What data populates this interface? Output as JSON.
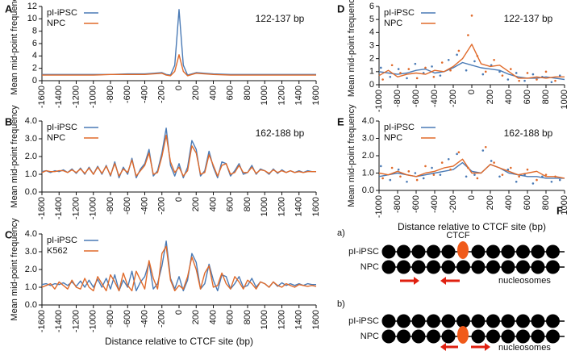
{
  "chart_data": [
    {
      "type": "line",
      "panel": "A",
      "annotation": "122-137 bp",
      "ylabel": "Mean mid-point frequency",
      "x": [
        -1600,
        -1400,
        -1200,
        -1000,
        -800,
        -600,
        -400,
        -300,
        -200,
        -150,
        -100,
        -50,
        0,
        50,
        100,
        150,
        200,
        300,
        400,
        600,
        800,
        1000,
        1200,
        1400,
        1600
      ],
      "series": [
        {
          "name": "pI-iPSC",
          "color": "#4a7ab5",
          "values": [
            1.0,
            1.0,
            1.0,
            1.0,
            1.0,
            1.1,
            1.1,
            1.2,
            1.3,
            1.0,
            0.9,
            2.5,
            11.5,
            2.5,
            0.9,
            1.1,
            1.3,
            1.2,
            1.1,
            1.0,
            1.0,
            1.0,
            1.0,
            1.0,
            1.0
          ]
        },
        {
          "name": "NPC",
          "color": "#e06a2a",
          "values": [
            0.9,
            0.9,
            0.9,
            0.9,
            1.0,
            1.0,
            1.0,
            1.1,
            1.2,
            0.9,
            0.8,
            1.5,
            4.2,
            1.5,
            0.8,
            1.0,
            1.2,
            1.1,
            1.0,
            0.9,
            0.9,
            0.9,
            0.9,
            0.9,
            0.9
          ]
        }
      ],
      "xlim": [
        -1600,
        1600
      ],
      "xticks": [
        -1600,
        -1400,
        -1200,
        -1000,
        -800,
        -600,
        -400,
        -200,
        0,
        200,
        400,
        600,
        800,
        1000,
        1200,
        1400,
        1600
      ],
      "ylim": [
        0,
        12
      ],
      "yticks": [
        0,
        2,
        4,
        6,
        8,
        10,
        12
      ]
    },
    {
      "type": "line",
      "panel": "B",
      "annotation": "162-188 bp",
      "ylabel": "Mean mid-point frequency",
      "x": [
        -1600,
        -1550,
        -1500,
        -1450,
        -1400,
        -1350,
        -1300,
        -1250,
        -1200,
        -1150,
        -1100,
        -1050,
        -1000,
        -950,
        -900,
        -850,
        -800,
        -750,
        -700,
        -650,
        -600,
        -550,
        -500,
        -450,
        -400,
        -350,
        -300,
        -250,
        -200,
        -150,
        -100,
        -50,
        0,
        50,
        100,
        150,
        200,
        250,
        300,
        350,
        400,
        450,
        500,
        550,
        600,
        650,
        700,
        750,
        800,
        850,
        900,
        950,
        1000,
        1050,
        1100,
        1150,
        1200,
        1250,
        1300,
        1350,
        1400,
        1450,
        1500,
        1550,
        1600
      ],
      "series": [
        {
          "name": "pI-iPSC",
          "color": "#4a7ab5",
          "values": [
            1.15,
            1.2,
            1.1,
            1.2,
            1.15,
            1.25,
            1.1,
            1.3,
            1.05,
            1.35,
            1.0,
            1.4,
            1.0,
            1.45,
            1.0,
            1.5,
            0.9,
            1.7,
            0.8,
            1.4,
            1.0,
            1.9,
            0.8,
            1.3,
            1.6,
            2.4,
            0.9,
            1.2,
            2.2,
            3.6,
            1.5,
            0.9,
            1.6,
            0.8,
            1.4,
            2.9,
            2.4,
            0.9,
            1.2,
            2.3,
            1.4,
            0.8,
            1.7,
            1.6,
            0.9,
            1.2,
            1.6,
            1.0,
            1.1,
            1.5,
            1.0,
            1.3,
            1.2,
            1.0,
            1.3,
            1.05,
            1.25,
            1.1,
            1.2,
            1.1,
            1.2,
            1.1,
            1.2,
            1.15,
            1.15
          ]
        },
        {
          "name": "NPC",
          "color": "#e06a2a",
          "values": [
            1.1,
            1.2,
            1.15,
            1.15,
            1.2,
            1.2,
            1.1,
            1.25,
            1.1,
            1.3,
            1.05,
            1.35,
            1.0,
            1.4,
            1.05,
            1.45,
            0.95,
            1.6,
            0.9,
            1.3,
            1.1,
            1.8,
            0.9,
            1.2,
            1.5,
            2.2,
            1.0,
            1.1,
            2.0,
            3.2,
            1.7,
            1.1,
            1.4,
            0.9,
            1.2,
            2.6,
            2.2,
            1.0,
            1.1,
            2.1,
            1.5,
            0.9,
            1.5,
            1.6,
            1.0,
            1.1,
            1.5,
            1.1,
            1.1,
            1.4,
            1.05,
            1.25,
            1.2,
            1.05,
            1.25,
            1.1,
            1.2,
            1.1,
            1.2,
            1.1,
            1.15,
            1.1,
            1.15,
            1.15,
            1.15
          ]
        }
      ],
      "xlim": [
        -1600,
        1600
      ],
      "xticks": [
        -1600,
        -1400,
        -1200,
        -1000,
        -800,
        -600,
        -400,
        -200,
        0,
        200,
        400,
        600,
        800,
        1000,
        1200,
        1400,
        1600
      ],
      "ylim": [
        0,
        4
      ],
      "yticks": [
        {
          "value": 0,
          "label": "0.0"
        },
        {
          "value": 1,
          "label": "1.0"
        },
        {
          "value": 2,
          "label": "2.0"
        },
        {
          "value": 3,
          "label": "3.0"
        },
        {
          "value": 4,
          "label": "4.0"
        }
      ]
    },
    {
      "type": "line",
      "panel": "C",
      "ylabel": "Mean mid-point frequency",
      "xlabel": "Distance relative to CTCF site (bp)",
      "x": [
        -1600,
        -1550,
        -1500,
        -1450,
        -1400,
        -1350,
        -1300,
        -1250,
        -1200,
        -1150,
        -1100,
        -1050,
        -1000,
        -950,
        -900,
        -850,
        -800,
        -750,
        -700,
        -650,
        -600,
        -550,
        -500,
        -450,
        -400,
        -350,
        -300,
        -250,
        -200,
        -150,
        -100,
        -50,
        0,
        50,
        100,
        150,
        200,
        250,
        300,
        350,
        400,
        450,
        500,
        550,
        600,
        650,
        700,
        750,
        800,
        850,
        900,
        950,
        1000,
        1050,
        1100,
        1150,
        1200,
        1250,
        1300,
        1350,
        1400,
        1450,
        1500,
        1550,
        1600
      ],
      "series": [
        {
          "name": "pI-iPSC",
          "color": "#4a7ab5",
          "values": [
            1.15,
            1.2,
            1.1,
            1.2,
            1.15,
            1.25,
            1.1,
            1.3,
            1.05,
            1.35,
            1.0,
            1.4,
            1.0,
            1.45,
            1.0,
            1.5,
            0.9,
            1.7,
            0.8,
            1.4,
            1.0,
            1.9,
            0.8,
            1.3,
            1.6,
            2.4,
            0.9,
            1.2,
            2.2,
            3.6,
            1.5,
            0.9,
            1.6,
            0.8,
            1.4,
            2.9,
            2.4,
            0.9,
            1.2,
            2.3,
            1.4,
            0.8,
            1.7,
            1.6,
            0.9,
            1.2,
            1.6,
            1.0,
            1.1,
            1.5,
            1.0,
            1.3,
            1.2,
            1.0,
            1.3,
            1.05,
            1.25,
            1.1,
            1.2,
            1.1,
            1.2,
            1.1,
            1.2,
            1.15,
            1.15
          ]
        },
        {
          "name": "K562",
          "color": "#e06a2a",
          "values": [
            1.0,
            1.1,
            1.2,
            0.9,
            1.3,
            1.1,
            0.9,
            1.4,
            1.0,
            0.9,
            1.5,
            1.0,
            0.8,
            1.6,
            1.2,
            0.8,
            1.7,
            1.3,
            0.8,
            1.8,
            1.1,
            0.8,
            1.9,
            1.4,
            0.9,
            2.5,
            1.5,
            0.9,
            2.9,
            3.3,
            1.4,
            0.8,
            1.1,
            0.9,
            1.6,
            2.7,
            2.0,
            0.9,
            1.8,
            2.2,
            1.0,
            1.1,
            1.8,
            1.2,
            0.9,
            1.6,
            1.3,
            0.9,
            1.4,
            1.2,
            0.9,
            1.3,
            1.2,
            1.0,
            1.3,
            1.1,
            1.0,
            1.2,
            1.1,
            1.0,
            1.15,
            1.1,
            1.05,
            1.1,
            1.05
          ]
        }
      ],
      "xlim": [
        -1600,
        1600
      ],
      "xticks": [
        -1600,
        -1400,
        -1200,
        -1000,
        -800,
        -600,
        -400,
        -200,
        0,
        200,
        400,
        600,
        800,
        1000,
        1200,
        1400,
        1600
      ],
      "ylim": [
        0,
        4
      ],
      "yticks": [
        {
          "value": 0,
          "label": "0.0"
        },
        {
          "value": 1,
          "label": "1.0"
        },
        {
          "value": 2,
          "label": "2.0"
        },
        {
          "value": 3,
          "label": "3.0"
        },
        {
          "value": 4,
          "label": "4.0"
        }
      ]
    },
    {
      "type": "line",
      "panel": "D",
      "annotation": "122-137 bp",
      "ylabel": "Mean mid-point frequency",
      "x": [
        -1000,
        -900,
        -800,
        -700,
        -600,
        -500,
        -400,
        -300,
        -200,
        -100,
        0,
        100,
        200,
        300,
        400,
        500,
        600,
        700,
        800,
        900,
        1000
      ],
      "series": [
        {
          "name": "pI-iPSC",
          "color": "#4a7ab5",
          "values": [
            1.0,
            0.9,
            0.8,
            0.9,
            1.1,
            1.2,
            0.9,
            1.0,
            1.3,
            1.7,
            1.5,
            1.3,
            1.2,
            1.1,
            0.8,
            0.6,
            0.5,
            0.5,
            0.6,
            0.5,
            0.4
          ],
          "points": {
            "x": [
              -980,
              -880,
              -790,
              -700,
              -610,
              -520,
              -430,
              -340,
              -250,
              -160,
              -60,
              30,
              120,
              210,
              300,
              390,
              480,
              570,
              660,
              760,
              860,
              950
            ],
            "y": [
              1.3,
              0.6,
              1.2,
              0.5,
              1.6,
              0.9,
              1.4,
              0.7,
              1.9,
              2.3,
              1.1,
              1.8,
              0.8,
              1.5,
              1.0,
              0.4,
              0.9,
              0.3,
              0.8,
              0.6,
              0.2,
              0.7
            ]
          }
        },
        {
          "name": "NPC",
          "color": "#e06a2a",
          "values": [
            0.7,
            1.1,
            0.6,
            0.8,
            0.9,
            0.8,
            1.1,
            1.0,
            1.4,
            2.0,
            3.1,
            1.6,
            1.4,
            1.5,
            1.0,
            0.5,
            0.5,
            0.6,
            0.5,
            0.6,
            0.6
          ],
          "points": {
            "x": [
              -960,
              -860,
              -770,
              -680,
              -590,
              -500,
              -410,
              -320,
              -230,
              -140,
              -40,
              0,
              60,
              150,
              240,
              330,
              420,
              510,
              600,
              700,
              800,
              900
            ],
            "y": [
              0.4,
              1.5,
              0.9,
              1.2,
              0.5,
              1.3,
              0.6,
              1.7,
              1.1,
              2.6,
              3.8,
              5.3,
              2.2,
              1.0,
              1.9,
              0.7,
              1.2,
              0.3,
              0.9,
              0.4,
              1.0,
              0.3
            ]
          }
        }
      ],
      "xlim": [
        -1000,
        1000
      ],
      "xticks": [
        -1000,
        -800,
        -600,
        -400,
        -200,
        0,
        200,
        400,
        600,
        800,
        1000
      ],
      "ylim": [
        0,
        6
      ],
      "yticks": [
        0,
        1,
        2,
        3,
        4,
        5,
        6
      ]
    },
    {
      "type": "line",
      "panel": "E",
      "annotation": "162-188 bp",
      "ylabel": "Mean mid-point frequency",
      "xlabel": "Distance relative to CTCF site (bp)",
      "x": [
        -1000,
        -900,
        -800,
        -700,
        -600,
        -500,
        -400,
        -300,
        -200,
        -100,
        0,
        100,
        200,
        300,
        400,
        500,
        600,
        700,
        800,
        900,
        1000
      ],
      "series": [
        {
          "name": "pI-iPSC",
          "color": "#4a7ab5",
          "values": [
            0.8,
            0.9,
            1.0,
            0.9,
            0.8,
            0.9,
            1.0,
            1.1,
            1.2,
            1.6,
            1.1,
            1.0,
            1.5,
            1.3,
            1.0,
            0.9,
            0.8,
            0.8,
            0.7,
            0.7,
            0.7
          ],
          "points": {
            "x": [
              -980,
              -880,
              -790,
              -700,
              -610,
              -520,
              -430,
              -340,
              -250,
              -160,
              -60,
              30,
              120,
              210,
              300,
              390,
              480,
              570,
              660,
              760,
              860,
              950
            ],
            "y": [
              1.4,
              0.6,
              1.2,
              0.5,
              1.0,
              0.7,
              1.3,
              0.9,
              1.8,
              2.1,
              0.8,
              0.9,
              2.3,
              1.7,
              0.8,
              1.2,
              0.5,
              0.9,
              0.4,
              0.8,
              0.5,
              0.6
            ]
          }
        },
        {
          "name": "NPC",
          "color": "#e06a2a",
          "values": [
            1.0,
            0.9,
            1.1,
            0.9,
            0.8,
            1.0,
            1.1,
            1.3,
            1.4,
            1.8,
            1.0,
            1.0,
            1.5,
            1.3,
            1.1,
            0.9,
            1.0,
            1.1,
            0.8,
            0.8,
            0.7
          ],
          "points": {
            "x": [
              -960,
              -860,
              -770,
              -680,
              -590,
              -500,
              -410,
              -320,
              -230,
              -140,
              -40,
              60,
              150,
              240,
              330,
              420,
              510,
              600,
              700,
              800,
              900
            ],
            "y": [
              0.7,
              1.3,
              0.8,
              1.1,
              0.6,
              1.4,
              0.9,
              1.6,
              1.2,
              2.2,
              1.3,
              0.7,
              2.5,
              1.6,
              0.9,
              1.3,
              0.8,
              1.2,
              0.6,
              0.9,
              0.8
            ]
          }
        }
      ],
      "xlim": [
        -1000,
        1000
      ],
      "xticks": [
        -1000,
        -800,
        -600,
        -400,
        -200,
        0,
        200,
        400,
        600,
        800,
        1000
      ],
      "ylim": [
        0,
        4
      ],
      "yticks": [
        {
          "value": 0,
          "label": "0.0"
        },
        {
          "value": 1,
          "label": "1.0"
        },
        {
          "value": 2,
          "label": "2.0"
        },
        {
          "value": 3,
          "label": "3.0"
        },
        {
          "value": 4,
          "label": "4.0"
        }
      ]
    }
  ],
  "diagram": {
    "panel": "F",
    "ctcf": "CTCF",
    "sections": [
      {
        "label": "a)",
        "tracks": [
          "pI-iPSC",
          "NPC"
        ],
        "note": "nucleosomes"
      },
      {
        "label": "b)",
        "tracks": [
          "pI-iPSC",
          "NPC"
        ],
        "note": "nucleosomes"
      }
    ]
  }
}
